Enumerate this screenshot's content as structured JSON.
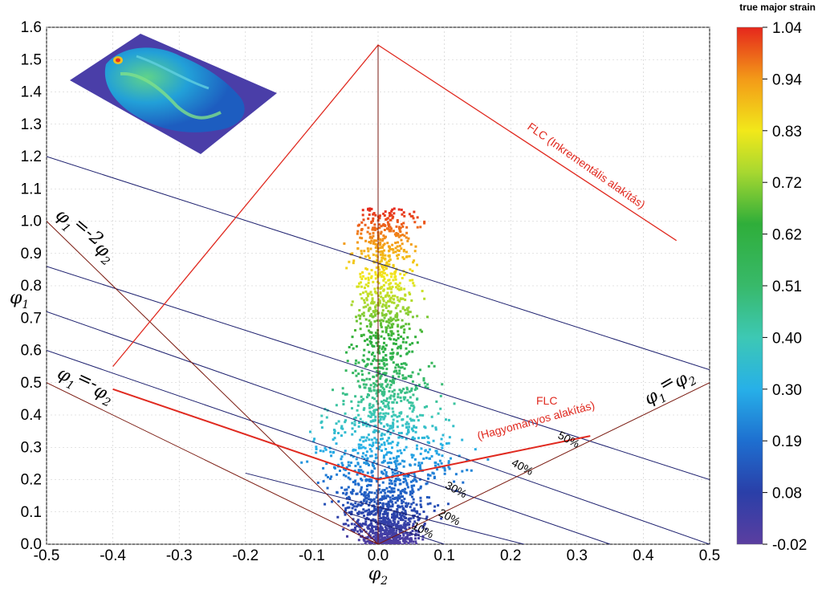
{
  "chart_data": {
    "type": "scatter",
    "xlabel": "φ2",
    "ylabel": "φ1",
    "xlim": [
      -0.5,
      0.5
    ],
    "ylim": [
      0.0,
      1.6
    ],
    "x_ticks": [
      "-0.5",
      "-0.4",
      "-0.3",
      "-0.2",
      "-0.1",
      "0.0",
      "0.1",
      "0.2",
      "0.3",
      "0.4",
      "0.5"
    ],
    "y_ticks": [
      "0.0",
      "0.1",
      "0.2",
      "0.3",
      "0.4",
      "0.5",
      "0.6",
      "0.7",
      "0.8",
      "0.9",
      "1.0",
      "1.1",
      "1.2",
      "1.3",
      "1.4",
      "1.5",
      "1.6"
    ],
    "grid": true,
    "colorbar": {
      "title": "true major strain",
      "labels": [
        "1.04",
        "0.94",
        "0.83",
        "0.72",
        "0.62",
        "0.51",
        "0.40",
        "0.30",
        "0.19",
        "0.08",
        "-0.02"
      ],
      "min": -0.02,
      "max": 1.04
    },
    "curves": [
      {
        "name": "FLC (Inkrementális alakítás)",
        "x": [
          -0.4,
          0.0,
          0.45
        ],
        "y": [
          0.55,
          1.545,
          0.94
        ],
        "color": "#e02a20"
      },
      {
        "name": "FLC (Hagyományos alakítás)",
        "x": [
          -0.4,
          0.0,
          0.32
        ],
        "y": [
          0.48,
          0.2,
          0.335
        ],
        "color": "#e02a20"
      }
    ],
    "reference_lines": [
      {
        "label": "φ1=-2φ2",
        "x": [
          -0.5,
          0.0
        ],
        "y": [
          1.0,
          0.0
        ],
        "color": "#7a1a10"
      },
      {
        "label": "φ1=-φ2",
        "x": [
          -0.5,
          0.0
        ],
        "y": [
          0.5,
          0.0
        ],
        "color": "#7a1a10"
      },
      {
        "label": "φ1=φ2",
        "x": [
          0.0,
          0.5
        ],
        "y": [
          0.0,
          0.5
        ],
        "color": "#7a1a10"
      }
    ],
    "thickness_lines": [
      {
        "label": "10%",
        "x": [
          -0.05,
          0.1
        ],
        "y": [
          0.1,
          0.0
        ]
      },
      {
        "label": "20%",
        "x": [
          -0.2,
          0.22
        ],
        "y": [
          0.22,
          0.0
        ]
      },
      {
        "label": "30%",
        "x": [
          -0.5,
          0.35
        ],
        "y": [
          0.6,
          0.0
        ]
      },
      {
        "label": "40%",
        "x": [
          -0.5,
          0.5
        ],
        "y": [
          0.72,
          0.0
        ]
      },
      {
        "label": "50%",
        "x": [
          -0.5,
          0.5
        ],
        "y": [
          0.86,
          0.2
        ]
      },
      {
        "label": "",
        "x": [
          -0.5,
          0.5
        ],
        "y": [
          1.2,
          0.54
        ]
      }
    ],
    "scatter_summary": {
      "points": 2600,
      "x_center": 0.0,
      "y_range": [
        -0.02,
        1.04
      ]
    }
  },
  "colors": {
    "flc": "#e02a20",
    "ref": "#7a1a10",
    "thickness": "#1c1f6e",
    "grid": "#c8c8c8"
  }
}
